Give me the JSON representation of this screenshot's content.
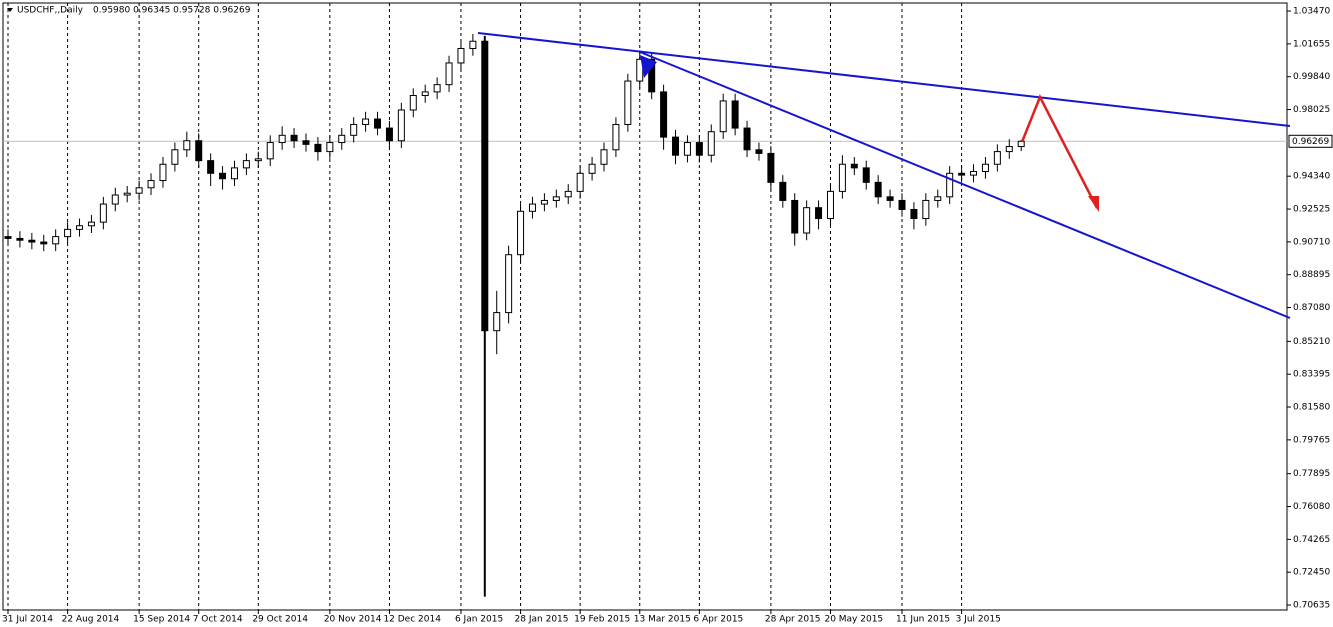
{
  "chart_data": {
    "type": "candlestick",
    "title": "USDCHF,,Daily",
    "subtitle": "0.95980 0.96345 0.95728 0.96269",
    "categories": [
      "31 Jul 2014",
      null,
      null,
      null,
      null,
      "22 Aug 2014",
      null,
      null,
      null,
      null,
      null,
      "15 Sep 2014",
      null,
      null,
      null,
      null,
      "7 Oct 2014",
      null,
      null,
      null,
      null,
      "29 Oct 2014",
      null,
      null,
      null,
      null,
      null,
      "20 Nov 2014",
      null,
      null,
      null,
      null,
      "12 Dec 2014",
      null,
      null,
      null,
      null,
      null,
      "6 Jan 2015",
      null,
      null,
      null,
      null,
      "28 Jan 2015",
      null,
      null,
      null,
      null,
      "19 Feb 2015",
      null,
      null,
      null,
      null,
      "13 Mar 2015",
      null,
      null,
      null,
      null,
      "6 Apr 2015",
      null,
      null,
      null,
      null,
      null,
      "28 Apr 2015",
      null,
      null,
      null,
      null,
      "20 May 2015",
      null,
      null,
      null,
      null,
      null,
      "11 Jun 2015",
      null,
      null,
      null,
      null,
      "3 Jul 2015",
      null,
      null,
      null,
      null,
      null
    ],
    "open": [
      0.91,
      0.909,
      0.908,
      0.907,
      0.906,
      0.91,
      0.914,
      0.916,
      0.918,
      0.928,
      0.933,
      0.934,
      0.937,
      0.941,
      0.95,
      0.958,
      0.963,
      0.952,
      0.945,
      0.942,
      0.948,
      0.952,
      0.953,
      0.962,
      0.966,
      0.963,
      0.961,
      0.957,
      0.962,
      0.966,
      0.972,
      0.975,
      0.97,
      0.963,
      0.98,
      0.988,
      0.99,
      0.994,
      1.006,
      1.014,
      1.018,
      0.858,
      0.868,
      0.9,
      0.924,
      0.928,
      0.93,
      0.932,
      0.935,
      0.945,
      0.95,
      0.958,
      0.972,
      0.996,
      1.008,
      0.99,
      0.965,
      0.955,
      0.962,
      0.955,
      0.968,
      0.985,
      0.97,
      0.958,
      0.956,
      0.94,
      0.93,
      0.912,
      0.926,
      0.92,
      0.935,
      0.95,
      0.948,
      0.94,
      0.932,
      0.93,
      0.925,
      0.92,
      0.93,
      0.932,
      0.945,
      0.944,
      0.946,
      0.95,
      0.957,
      0.9598
    ],
    "high": [
      0.914,
      0.913,
      0.912,
      0.911,
      0.914,
      0.918,
      0.92,
      0.922,
      0.932,
      0.937,
      0.938,
      0.941,
      0.945,
      0.954,
      0.962,
      0.968,
      0.967,
      0.956,
      0.949,
      0.952,
      0.956,
      0.957,
      0.966,
      0.971,
      0.97,
      0.967,
      0.965,
      0.966,
      0.97,
      0.976,
      0.979,
      0.979,
      0.974,
      0.984,
      0.992,
      0.994,
      0.998,
      1.01,
      1.019,
      1.022,
      1.021,
      0.88,
      0.905,
      0.928,
      0.932,
      0.934,
      0.936,
      0.939,
      0.949,
      0.954,
      0.962,
      0.976,
      1.0,
      1.013,
      1.012,
      0.994,
      0.969,
      0.966,
      0.966,
      0.972,
      0.989,
      0.989,
      0.974,
      0.962,
      0.96,
      0.944,
      0.934,
      0.93,
      0.93,
      0.939,
      0.955,
      0.954,
      0.952,
      0.944,
      0.936,
      0.934,
      0.929,
      0.934,
      0.936,
      0.949,
      0.949,
      0.95,
      0.954,
      0.961,
      0.9638,
      0.96345
    ],
    "low": [
      0.905,
      0.904,
      0.903,
      0.902,
      0.902,
      0.906,
      0.91,
      0.912,
      0.914,
      0.924,
      0.929,
      0.93,
      0.933,
      0.937,
      0.946,
      0.954,
      0.948,
      0.938,
      0.936,
      0.938,
      0.944,
      0.948,
      0.949,
      0.958,
      0.959,
      0.957,
      0.952,
      0.953,
      0.958,
      0.962,
      0.968,
      0.966,
      0.958,
      0.959,
      0.976,
      0.984,
      0.986,
      0.99,
      1.002,
      1.01,
      0.711,
      0.845,
      0.862,
      0.896,
      0.92,
      0.924,
      0.926,
      0.928,
      0.931,
      0.941,
      0.946,
      0.954,
      0.968,
      0.992,
      0.986,
      0.958,
      0.95,
      0.951,
      0.951,
      0.951,
      0.964,
      0.966,
      0.954,
      0.952,
      0.936,
      0.926,
      0.905,
      0.908,
      0.914,
      0.916,
      0.931,
      0.944,
      0.936,
      0.928,
      0.926,
      0.921,
      0.914,
      0.916,
      0.926,
      0.928,
      0.94,
      0.94,
      0.942,
      0.946,
      0.953,
      0.95728
    ],
    "close": [
      0.909,
      0.908,
      0.907,
      0.906,
      0.91,
      0.914,
      0.916,
      0.918,
      0.928,
      0.933,
      0.934,
      0.937,
      0.941,
      0.95,
      0.958,
      0.963,
      0.952,
      0.945,
      0.942,
      0.948,
      0.952,
      0.953,
      0.962,
      0.966,
      0.963,
      0.961,
      0.957,
      0.962,
      0.966,
      0.972,
      0.975,
      0.97,
      0.963,
      0.98,
      0.988,
      0.99,
      0.994,
      1.006,
      1.014,
      1.018,
      0.858,
      0.868,
      0.9,
      0.924,
      0.928,
      0.93,
      0.932,
      0.935,
      0.945,
      0.95,
      0.958,
      0.972,
      0.996,
      1.008,
      0.99,
      0.965,
      0.955,
      0.962,
      0.955,
      0.968,
      0.985,
      0.97,
      0.958,
      0.956,
      0.94,
      0.93,
      0.912,
      0.926,
      0.92,
      0.935,
      0.95,
      0.948,
      0.94,
      0.932,
      0.93,
      0.925,
      0.92,
      0.93,
      0.932,
      0.945,
      0.944,
      0.946,
      0.95,
      0.957,
      0.9598,
      0.96269
    ],
    "current_price": 0.96269,
    "ylim": [
      0.7036,
      1.0408
    ],
    "yticks": [
      {
        "value": 1.0347,
        "label": "1.03470"
      },
      {
        "value": 1.01655,
        "label": "1.01655"
      },
      {
        "value": 0.9984,
        "label": "0.99840"
      },
      {
        "value": 0.98025,
        "label": "0.98025"
      },
      {
        "value": 0.9434,
        "label": "0.94340"
      },
      {
        "value": 0.92525,
        "label": "0.92525"
      },
      {
        "value": 0.9071,
        "label": "0.90710"
      },
      {
        "value": 0.88895,
        "label": "0.88895"
      },
      {
        "value": 0.8708,
        "label": "0.87080"
      },
      {
        "value": 0.8521,
        "label": "0.85210"
      },
      {
        "value": 0.83395,
        "label": "0.83395"
      },
      {
        "value": 0.8158,
        "label": "0.81580"
      },
      {
        "value": 0.79765,
        "label": "0.79765"
      },
      {
        "value": 0.77895,
        "label": "0.77895"
      },
      {
        "value": 0.7608,
        "label": "0.76080"
      },
      {
        "value": 0.74265,
        "label": "0.74265"
      },
      {
        "value": 0.7245,
        "label": "0.72450"
      },
      {
        "value": 0.70635,
        "label": "0.70635"
      }
    ],
    "grid": true
  }
}
